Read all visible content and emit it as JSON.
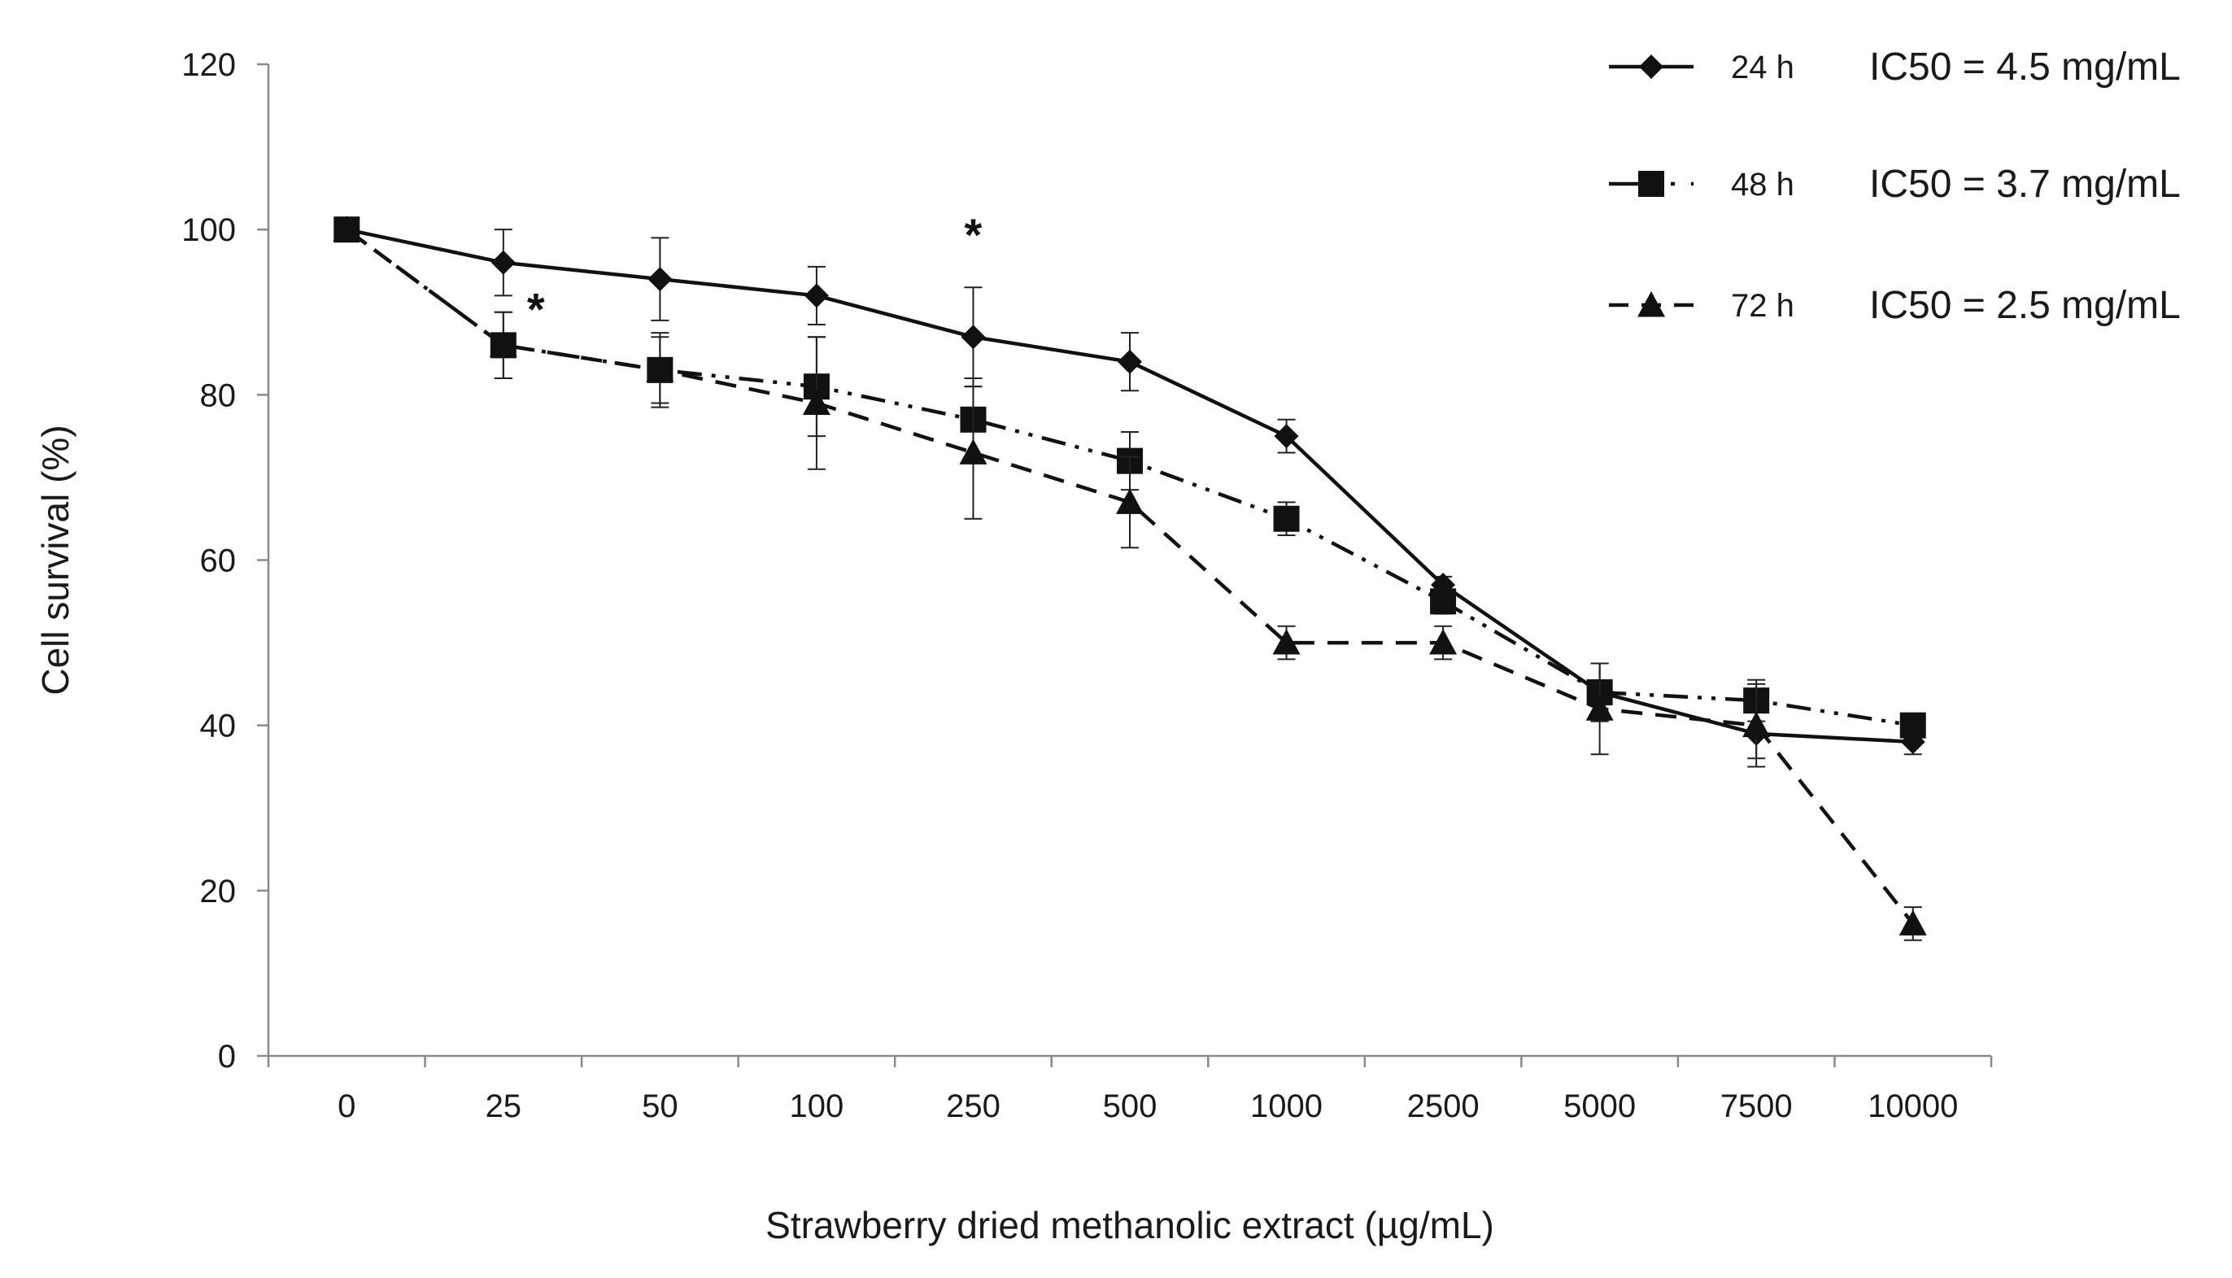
{
  "chart_data": {
    "type": "line",
    "title": "",
    "xlabel": "Strawberry dried methanolic extract (µg/mL)",
    "ylabel": "Cell survival (%)",
    "categories": [
      "0",
      "25",
      "50",
      "100",
      "250",
      "500",
      "1000",
      "2500",
      "5000",
      "7500",
      "10000"
    ],
    "ylim": [
      0,
      120
    ],
    "yticks": [
      0,
      20,
      40,
      60,
      80,
      100,
      120
    ],
    "legend_position": "top-right",
    "series": [
      {
        "name": "24 h",
        "ic50": "IC50 = 4.5 mg/mL",
        "marker": "diamond",
        "line_style": "solid",
        "values": [
          100,
          96,
          94,
          92,
          87,
          84,
          75,
          57,
          44,
          39,
          38
        ],
        "errors": [
          0,
          4,
          5,
          3.5,
          6,
          3.5,
          2,
          1,
          3.5,
          3,
          1.5
        ]
      },
      {
        "name": "48 h",
        "ic50": "IC50 = 3.7 mg/mL",
        "marker": "square",
        "line_style": "dash-dot-dot",
        "values": [
          100,
          86,
          83,
          81,
          77,
          72,
          65,
          55,
          44,
          43,
          40
        ],
        "errors": [
          0,
          4,
          4.5,
          6,
          5,
          3.5,
          2,
          1.5,
          3.5,
          2.5,
          1
        ]
      },
      {
        "name": "72 h",
        "ic50": "IC50 = 2.5 mg/mL",
        "marker": "triangle",
        "line_style": "dashed",
        "values": [
          100,
          86,
          83,
          79,
          73,
          67,
          50,
          50,
          42,
          40,
          16
        ],
        "errors": [
          0,
          4,
          4,
          8,
          8,
          5.5,
          2,
          2,
          5.5,
          5,
          2
        ]
      }
    ],
    "annotations": [
      {
        "text": "*",
        "category": "25",
        "y": 91
      },
      {
        "text": "*",
        "category": "250",
        "y": 100
      }
    ]
  }
}
